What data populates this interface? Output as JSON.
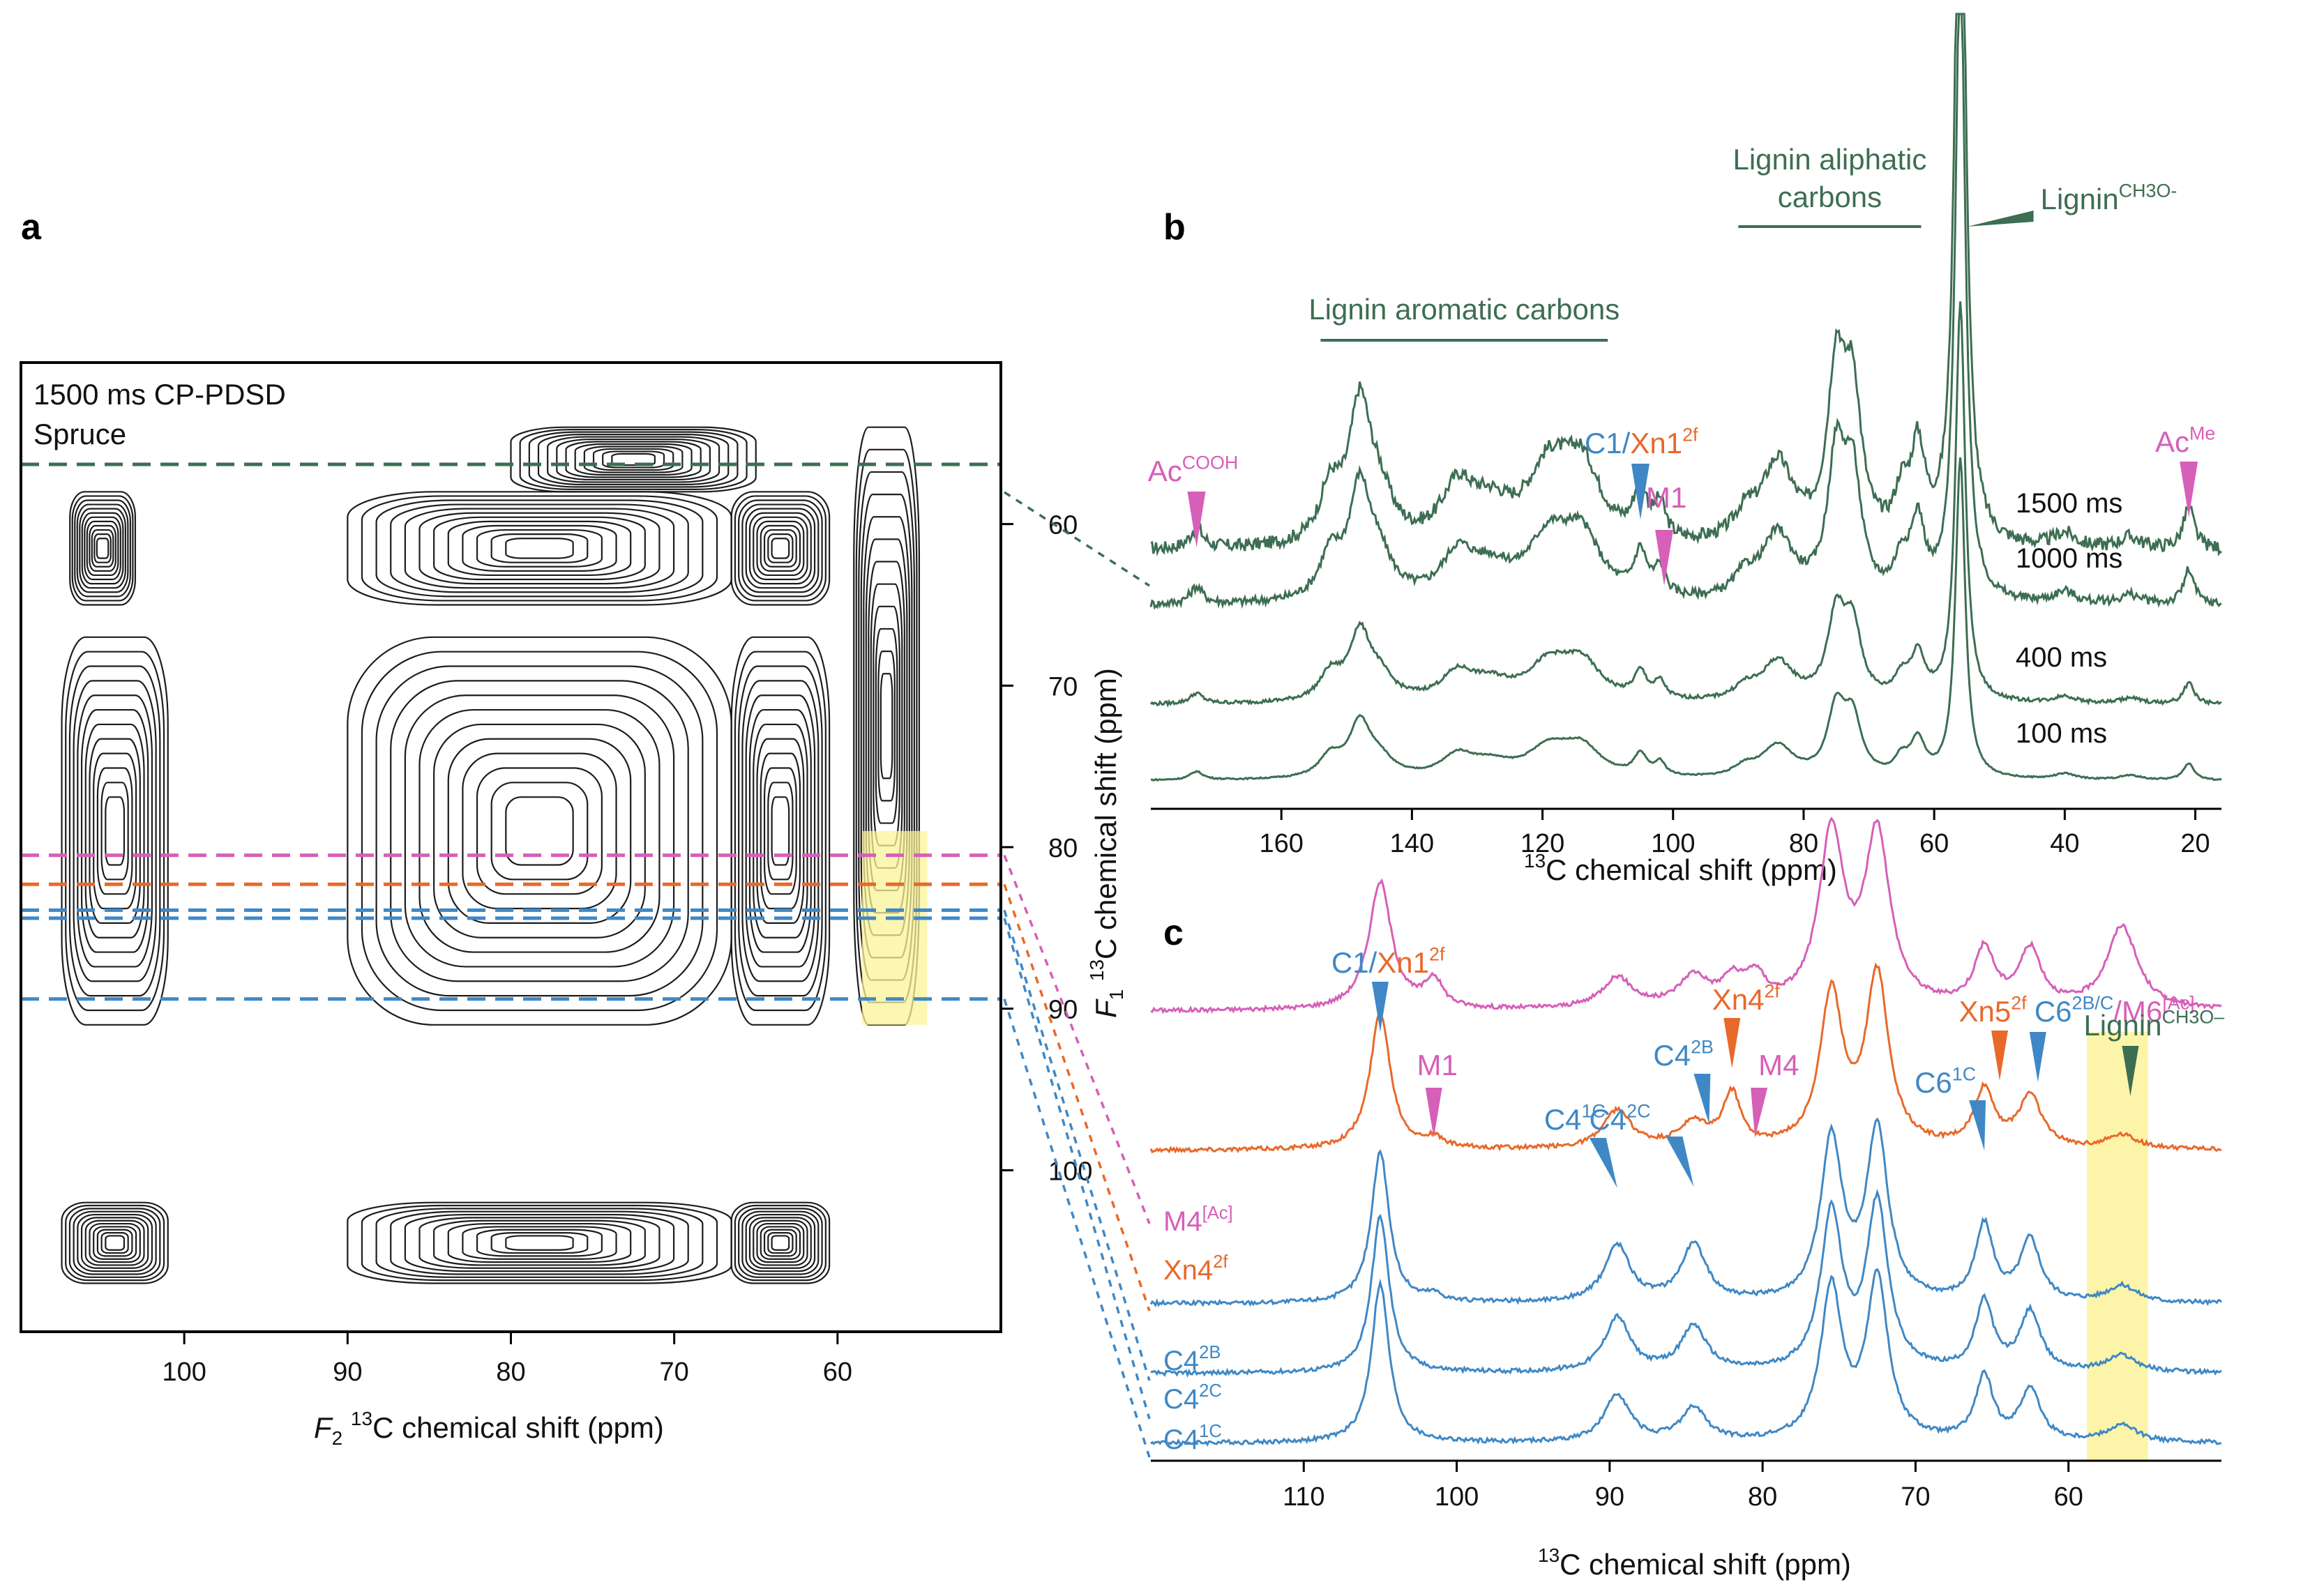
{
  "colors": {
    "green": "#3d6e52",
    "pink": "#d65fb8",
    "orange": "#e8692a",
    "blue": "#3f88c5",
    "highlight": "#fbf39a"
  },
  "chart_data": [
    {
      "panel": "a",
      "type": "heatmap",
      "kind": "2D contour",
      "title": "1500 ms CP-PDSD",
      "subtitle": "Spruce",
      "xlabel": "F2 13C chemical shift (ppm)",
      "ylabel": "F1 13C chemical shift (ppm)",
      "xlim": [
        110,
        50
      ],
      "ylim": [
        50,
        110
      ],
      "x_ticks": [
        100,
        90,
        80,
        70,
        60
      ],
      "y_ticks": [
        60,
        70,
        80,
        90,
        100
      ],
      "slices_at_F1_ppm": [
        {
          "ppm": 56.3,
          "color": "green"
        },
        {
          "ppm": 80.5,
          "color": "pink"
        },
        {
          "ppm": 82.3,
          "color": "orange"
        },
        {
          "ppm": 83.9,
          "color": "blue"
        },
        {
          "ppm": 84.4,
          "color": "blue"
        },
        {
          "ppm": 89.4,
          "color": "blue"
        }
      ],
      "highlight_F2_range": [
        54.5,
        58.5
      ],
      "highlight_F1_range": [
        79,
        91
      ],
      "contour_blocks": [
        {
          "x": [
            103,
            107
          ],
          "y": [
            58,
            65
          ]
        },
        {
          "x": [
            101,
            107.5
          ],
          "y": [
            67,
            91
          ]
        },
        {
          "x": [
            101,
            107.5
          ],
          "y": [
            102,
            107
          ]
        },
        {
          "x": [
            66.5,
            90
          ],
          "y": [
            58,
            65
          ]
        },
        {
          "x": [
            66.5,
            90
          ],
          "y": [
            67,
            91
          ]
        },
        {
          "x": [
            66.5,
            90
          ],
          "y": [
            102,
            107
          ]
        },
        {
          "x": [
            60.5,
            66.5
          ],
          "y": [
            58,
            65
          ]
        },
        {
          "x": [
            60.5,
            66.5
          ],
          "y": [
            67,
            91
          ]
        },
        {
          "x": [
            60.5,
            66.5
          ],
          "y": [
            102,
            107
          ]
        },
        {
          "x": [
            65,
            80
          ],
          "y": [
            54,
            58
          ]
        },
        {
          "x": [
            55,
            59
          ],
          "y": [
            54,
            91
          ]
        }
      ]
    },
    {
      "panel": "b",
      "type": "line",
      "xlabel": "13C chemical shift (ppm)",
      "xlim": [
        180,
        16
      ],
      "x_ticks": [
        160,
        140,
        120,
        100,
        80,
        60,
        40,
        20
      ],
      "series": [
        {
          "name": "1500 ms",
          "color": "green",
          "offset": 1.0,
          "noise": 1.0
        },
        {
          "name": "1000 ms",
          "color": "green",
          "offset": 0.76,
          "noise": 0.8
        },
        {
          "name": "400 ms",
          "color": "green",
          "offset": 0.33,
          "noise": 0.55
        },
        {
          "name": "100 ms",
          "color": "green",
          "offset": 0.0,
          "noise": 0.25
        }
      ],
      "peaks": [
        {
          "ppm": 173,
          "height": 0.22,
          "width": 1.2
        },
        {
          "ppm": 152.5,
          "height": 0.55,
          "width": 2.0
        },
        {
          "ppm": 148,
          "height": 1.4,
          "width": 2.0
        },
        {
          "ppm": 145,
          "height": 0.45,
          "width": 2.5
        },
        {
          "ppm": 133,
          "height": 0.55,
          "width": 3.0
        },
        {
          "ppm": 128,
          "height": 0.35,
          "width": 4.0
        },
        {
          "ppm": 119,
          "height": 0.75,
          "width": 4.0
        },
        {
          "ppm": 114,
          "height": 0.75,
          "width": 3.5
        },
        {
          "ppm": 105,
          "height": 0.55,
          "width": 1.2
        },
        {
          "ppm": 102,
          "height": 0.35,
          "width": 1.0
        },
        {
          "ppm": 89,
          "height": 0.25,
          "width": 2.0
        },
        {
          "ppm": 84,
          "height": 0.85,
          "width": 3.0
        },
        {
          "ppm": 75,
          "height": 1.75,
          "width": 1.6
        },
        {
          "ppm": 72.5,
          "height": 1.5,
          "width": 1.6
        },
        {
          "ppm": 65,
          "height": 0.45,
          "width": 1.3
        },
        {
          "ppm": 62.5,
          "height": 0.95,
          "width": 1.3
        },
        {
          "ppm": 56,
          "height": 8.5,
          "width": 0.9
        },
        {
          "ppm": 40,
          "height": 0.15,
          "width": 2.0
        },
        {
          "ppm": 30,
          "height": 0.12,
          "width": 2.0
        },
        {
          "ppm": 21,
          "height": 0.45,
          "width": 1.0
        }
      ],
      "annotations": [
        {
          "text": "Lignin aromatic carbons",
          "color": "green",
          "bracket_ppm": [
            154,
            110
          ]
        },
        {
          "text_line1": "Lignin aliphatic",
          "text_line2": "carbons",
          "color": "green",
          "bracket_ppm": [
            90,
            62
          ]
        },
        {
          "text": "Lignin",
          "sup": "CH3O-",
          "color": "green",
          "arrow_ppm": 56
        },
        {
          "text": "Ac",
          "sup": "COOH",
          "color": "pink",
          "arrow_ppm": 173
        },
        {
          "text": "Ac",
          "sup": "Me",
          "color": "pink",
          "arrow_ppm": 21
        },
        {
          "text": "C1/",
          "text2": "Xn1",
          "sup": "2f",
          "color": "blue",
          "color2": "orange",
          "arrow_ppm": 105
        },
        {
          "text": "M1",
          "color": "pink",
          "arrow_ppm": 102
        }
      ]
    },
    {
      "panel": "c",
      "type": "line",
      "xlabel": "13C chemical shift (ppm)",
      "xlim": [
        120,
        50
      ],
      "x_ticks": [
        110,
        100,
        90,
        80,
        70,
        60
      ],
      "highlight_ppm_range": [
        54.8,
        58.8
      ],
      "series": [
        {
          "name": "M4",
          "sup": "[Ac]",
          "color": "pink",
          "offset": 3.15,
          "peaks": [
            [
              105,
              2.7,
              0.9
            ],
            [
              101.5,
              0.6,
              0.7
            ],
            [
              89.5,
              0.65,
              1.2
            ],
            [
              84.5,
              0.65,
              1.2
            ],
            [
              82,
              0.5,
              0.8
            ],
            [
              80.5,
              0.6,
              0.8
            ],
            [
              75.5,
              3.6,
              1.0
            ],
            [
              72.5,
              3.6,
              1.0
            ],
            [
              65.5,
              1.2,
              0.8
            ],
            [
              62.5,
              1.2,
              0.9
            ],
            [
              56.5,
              1.75,
              1.2
            ]
          ]
        },
        {
          "name": "Xn4",
          "sup": "2f",
          "color": "orange",
          "offset": 2.15,
          "peaks": [
            [
              105,
              2.9,
              0.8
            ],
            [
              101.5,
              0.2,
              0.7
            ],
            [
              89.5,
              0.8,
              1.1
            ],
            [
              84.5,
              0.5,
              1.2
            ],
            [
              82,
              1.1,
              0.7
            ],
            [
              75.5,
              3.2,
              0.9
            ],
            [
              72.5,
              3.6,
              0.9
            ],
            [
              65.5,
              1.2,
              0.8
            ],
            [
              62.5,
              1.1,
              0.9
            ],
            [
              56.5,
              0.3,
              1.2
            ]
          ]
        },
        {
          "name": "C4",
          "sup": "2B",
          "color": "blue",
          "offset": 1.05,
          "peaks": [
            [
              105,
              3.2,
              0.7
            ],
            [
              101.5,
              0.15,
              0.7
            ],
            [
              89.5,
              1.2,
              1.0
            ],
            [
              84.5,
              1.2,
              1.0
            ],
            [
              75.5,
              3.4,
              0.85
            ],
            [
              72.5,
              3.6,
              0.85
            ],
            [
              65.5,
              1.6,
              0.7
            ],
            [
              62.5,
              1.3,
              0.8
            ],
            [
              56.5,
              0.35,
              1.2
            ]
          ]
        },
        {
          "name": "C4",
          "sup": "2C",
          "color": "blue",
          "offset": 0.55,
          "peaks": [
            [
              105,
              3.3,
              0.7
            ],
            [
              89.5,
              1.15,
              1.0
            ],
            [
              84.5,
              0.95,
              1.0
            ],
            [
              75.5,
              3.3,
              0.85
            ],
            [
              72.5,
              3.5,
              0.85
            ],
            [
              65.5,
              1.45,
              0.7
            ],
            [
              62.5,
              1.25,
              0.8
            ],
            [
              56.5,
              0.35,
              1.2
            ]
          ]
        },
        {
          "name": "C4",
          "sup": "1C",
          "color": "blue",
          "offset": 0.05,
          "peaks": [
            [
              105,
              3.35,
              0.7
            ],
            [
              89.5,
              1.0,
              1.0
            ],
            [
              84.5,
              0.7,
              1.0
            ],
            [
              75.5,
              3.2,
              0.85
            ],
            [
              72.5,
              3.4,
              0.85
            ],
            [
              65.5,
              1.35,
              0.7
            ],
            [
              62.5,
              1.1,
              0.8
            ],
            [
              56.5,
              0.35,
              1.2
            ]
          ]
        }
      ],
      "annotations": [
        {
          "text": "C1/",
          "text2": "Xn1",
          "sup": "2f",
          "color": "blue",
          "color2": "orange",
          "arrow_ppm": 105
        },
        {
          "text": "M1",
          "color": "pink",
          "arrow_ppm": 101.5
        },
        {
          "text": "C4",
          "sup": "1C",
          "color": "blue",
          "arrow_ppm": 89.5
        },
        {
          "text": "C4",
          "sup": "2C",
          "color": "blue",
          "arrow_ppm": 84.5
        },
        {
          "text": "C4",
          "sup": "2B",
          "color": "blue",
          "arrow_ppm": 83.5
        },
        {
          "text": "Xn4",
          "sup": "2f",
          "color": "orange",
          "arrow_ppm": 82
        },
        {
          "text": "M4",
          "color": "pink",
          "arrow_ppm": 80.5
        },
        {
          "text": "C6",
          "sup": "1C",
          "color": "blue",
          "arrow_ppm": 65.5
        },
        {
          "text": "Xn5",
          "sup": "2f",
          "color": "orange",
          "arrow_ppm": 64.5
        },
        {
          "text": "C6",
          "sup": "2B/C",
          "text2": "/M6",
          "sup2": "[Ac]",
          "color": "blue",
          "color2": "pink",
          "arrow_ppm": 62
        },
        {
          "text": "Lignin",
          "sup": "CH3O–",
          "color": "green",
          "arrow_ppm": 56.5
        }
      ]
    }
  ]
}
